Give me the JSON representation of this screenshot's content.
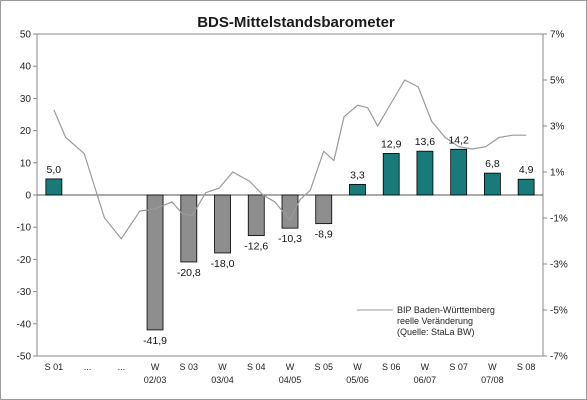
{
  "chart_data": {
    "type": "bar",
    "title": "BDS-Mittelstandsbarometer",
    "categories": [
      "S 01",
      "...",
      "...",
      "W 02/03",
      "S 03",
      "W 03/04",
      "S 04",
      "W 04/05",
      "S 05",
      "W 05/06",
      "S 06",
      "W 06/07",
      "S 07",
      "W 07/08",
      "S 08"
    ],
    "category_lines": [
      [
        "S 01",
        ""
      ],
      [
        "...",
        ""
      ],
      [
        "...",
        ""
      ],
      [
        "W",
        "02/03"
      ],
      [
        "S 03",
        ""
      ],
      [
        "W",
        "03/04"
      ],
      [
        "S 04",
        ""
      ],
      [
        "W",
        "04/05"
      ],
      [
        "S 05",
        ""
      ],
      [
        "W",
        "05/06"
      ],
      [
        "S 06",
        ""
      ],
      [
        "W",
        "06/07"
      ],
      [
        "S 07",
        ""
      ],
      [
        "W",
        "07/08"
      ],
      [
        "S 08",
        ""
      ]
    ],
    "series": [
      {
        "values": [
          5.0,
          null,
          null,
          -41.9,
          -20.8,
          -18.0,
          -12.6,
          -10.3,
          -8.9,
          3.3,
          12.9,
          13.6,
          14.2,
          6.8,
          4.9
        ],
        "labels": [
          "5,0",
          "",
          "",
          "-41,9",
          "-20,8",
          "-18,0",
          "-12,6",
          "-10,3",
          "-8,9",
          "3,3",
          "12,9",
          "13,6",
          "14,2",
          "6,8",
          "4,9"
        ]
      },
      {
        "name": "BIP Baden-Württemberg reelle Veränderung (Quelle: StaLa BW)",
        "axis": "right",
        "x": [
          0,
          0.35,
          0.9,
          1.5,
          2.0,
          2.55,
          3.0,
          3.5,
          3.8,
          4.1,
          4.5,
          4.9,
          5.3,
          5.8,
          6.2,
          6.55,
          7.0,
          7.3,
          7.6,
          8.0,
          8.3,
          8.6,
          9.0,
          9.3,
          9.6,
          10.0,
          10.4,
          10.8,
          11.2,
          11.6,
          12.0,
          12.4,
          12.8,
          13.2,
          13.6,
          14.0
        ],
        "values": [
          3.7,
          2.5,
          1.8,
          -1.0,
          -1.9,
          -0.7,
          -0.6,
          -0.3,
          -0.8,
          -0.9,
          0.1,
          0.3,
          1.0,
          0.6,
          0.0,
          -0.3,
          -1.1,
          -0.2,
          0.2,
          1.9,
          1.5,
          3.4,
          3.9,
          3.8,
          3.0,
          4.0,
          5.0,
          4.7,
          3.2,
          2.5,
          2.1,
          2.0,
          2.1,
          2.5,
          2.6,
          2.6
        ]
      }
    ],
    "legend": {
      "line1": "BIP Baden-Württemberg",
      "line2": "reelle Veränderung",
      "line3": "(Quelle: StaLa BW)",
      "position": "bottom-right"
    },
    "y_left": {
      "min": -50,
      "max": 50,
      "step": 10,
      "ticks": [
        "50",
        "40",
        "30",
        "20",
        "10",
        "0",
        "-10",
        "-20",
        "-30",
        "-40",
        "-50"
      ]
    },
    "y_right": {
      "min": -7,
      "max": 7,
      "ticks": [
        "7%",
        "5%",
        "3%",
        "1%",
        "-1%",
        "-3%",
        "-5%",
        "-7%"
      ]
    },
    "colors": {
      "positive": "#1a7a7a",
      "negative": "#8e8e8e",
      "line": "#9a9a9a"
    },
    "grid": false
  }
}
